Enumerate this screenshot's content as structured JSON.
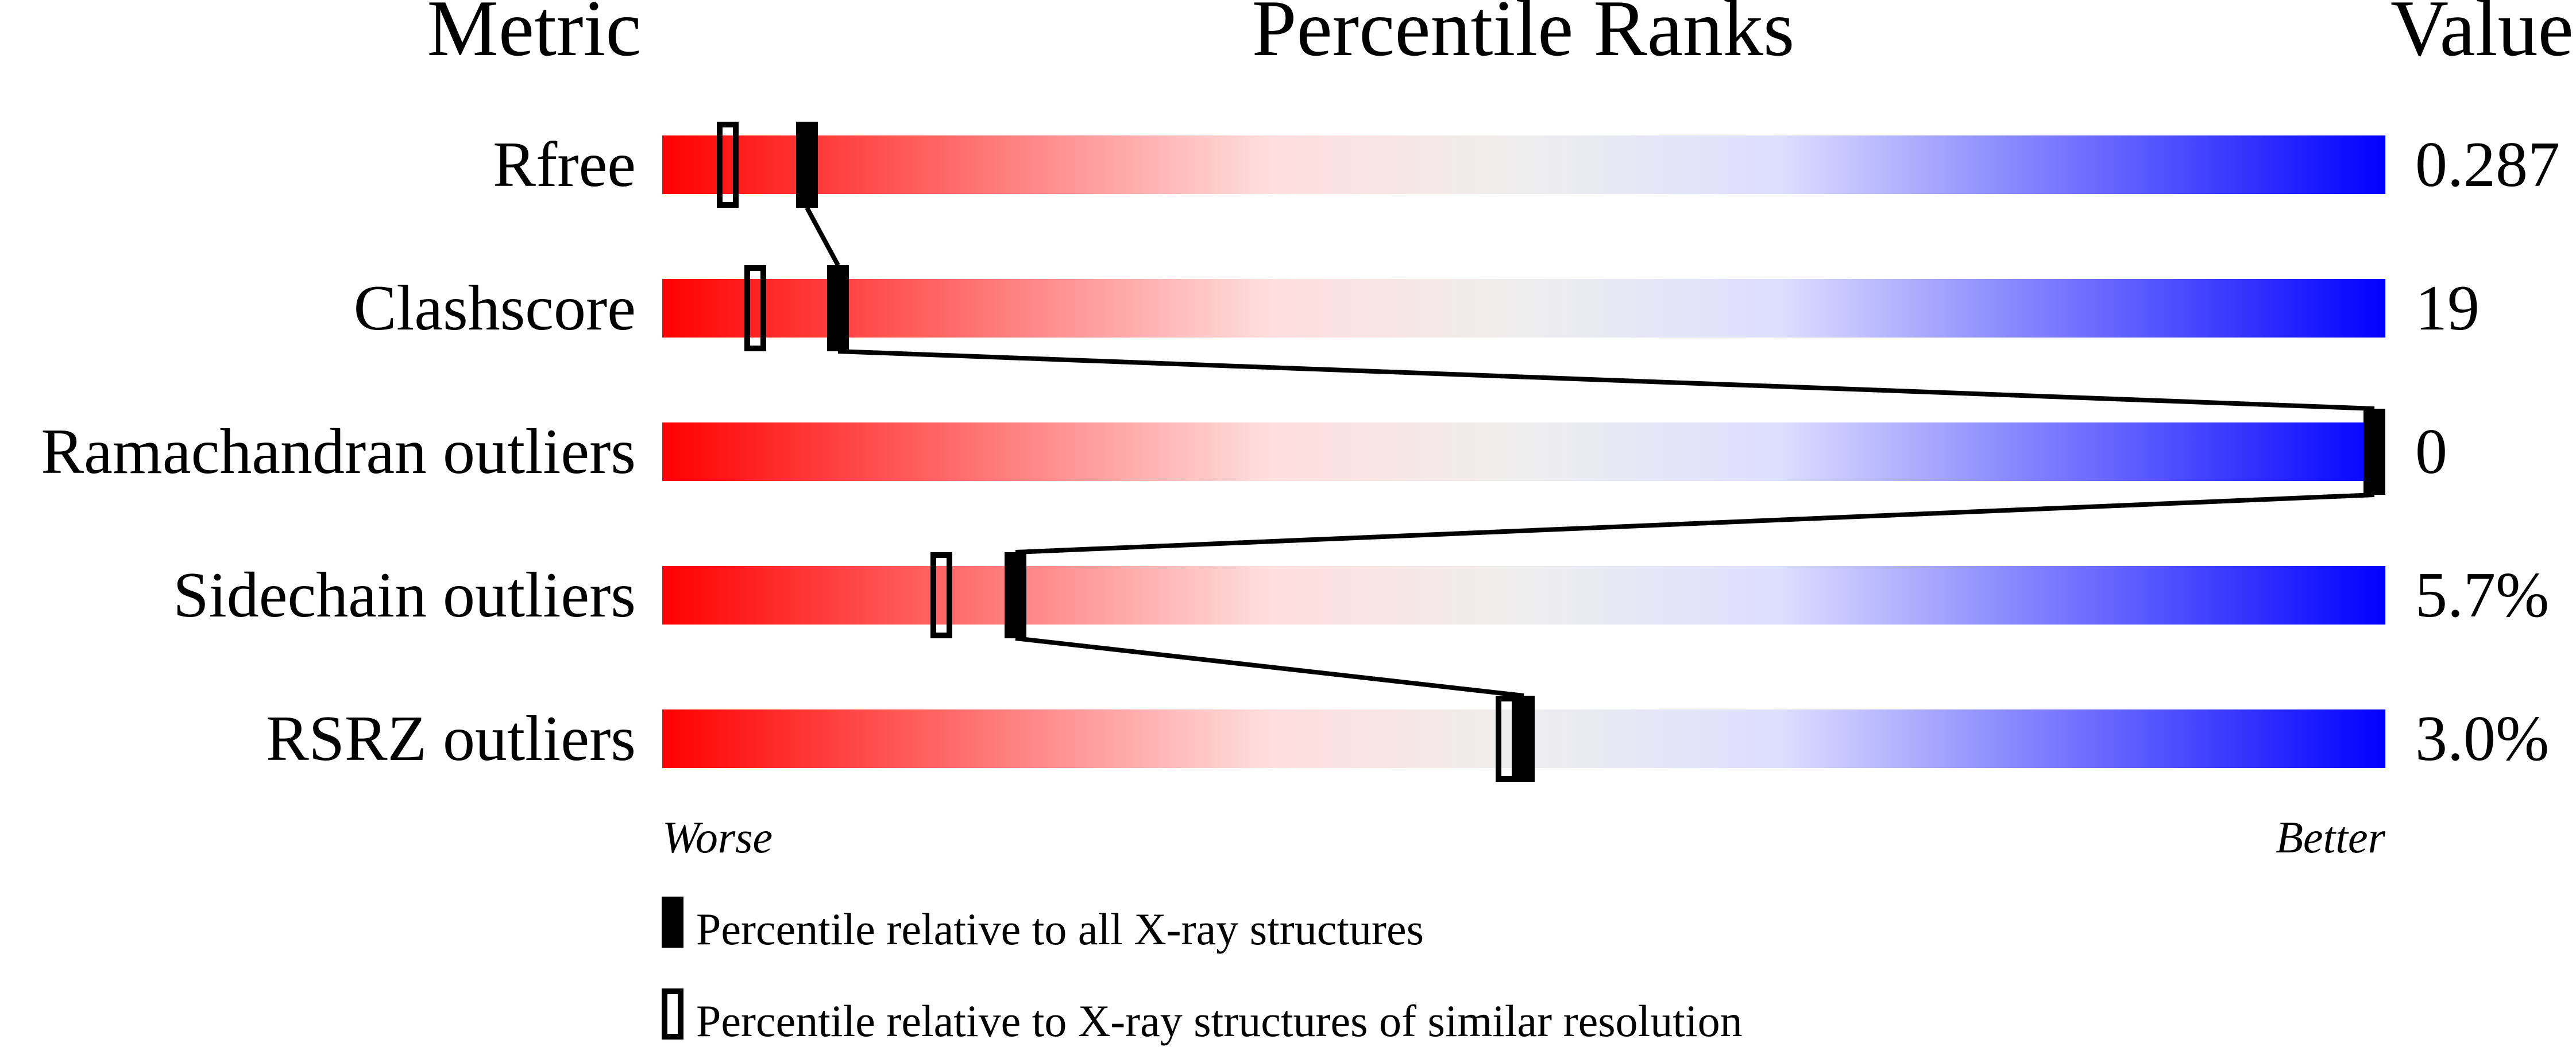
{
  "chart_data": {
    "type": "percentile-slider",
    "headers": {
      "metric": "Metric",
      "ranks": "Percentile Ranks",
      "value": "Value"
    },
    "xlim": [
      0,
      100
    ],
    "axis_labels": {
      "left": "Worse",
      "right": "Better"
    },
    "gradient_colors": [
      "#ff0000",
      "#ffdddd",
      "#eeeeee",
      "#ddddff",
      "#0000ff"
    ],
    "rows": [
      {
        "metric": "Rfree",
        "value": "0.287",
        "percentile_all": 8.4,
        "percentile_similar": 3.8
      },
      {
        "metric": "Clashscore",
        "value": "19",
        "percentile_all": 10.2,
        "percentile_similar": 5.4
      },
      {
        "metric": "Ramachandran outliers",
        "value": "0",
        "percentile_all": 100,
        "percentile_similar": 100
      },
      {
        "metric": "Sidechain outliers",
        "value": "5.7%",
        "percentile_all": 20.5,
        "percentile_similar": 16.2
      },
      {
        "metric": "RSRZ outliers",
        "value": "3.0%",
        "percentile_all": 50,
        "percentile_similar": 49
      }
    ],
    "legend": [
      {
        "marker": "filled",
        "label": "Percentile relative to all X-ray structures"
      },
      {
        "marker": "open",
        "label": "Percentile relative to X-ray structures of similar resolution"
      }
    ]
  }
}
